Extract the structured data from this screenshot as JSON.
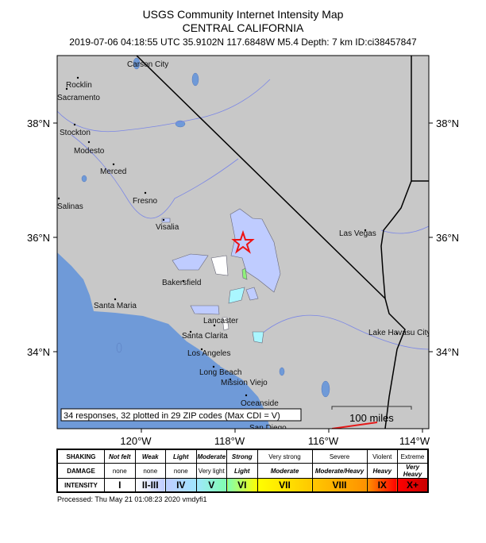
{
  "header": {
    "title": "USGS Community Internet Intensity Map",
    "region": "CENTRAL CALIFORNIA",
    "meta": "2019-07-06 04:18:55 UTC 35.9102N 117.6848W M5.4 Depth: 7 km ID:ci38457847"
  },
  "map": {
    "lat_labels": [
      "38°N",
      "36°N",
      "34°N"
    ],
    "lon_labels": [
      "120°W",
      "118°W",
      "116°W",
      "114°W"
    ],
    "cities": [
      "Carson City",
      "Rocklin",
      "Sacramento",
      "Stockton",
      "Modesto",
      "Merced",
      "Salinas",
      "Fresno",
      "Visalia",
      "Las Vegas",
      "Bakersfield",
      "Santa Maria",
      "Lancaster",
      "Santa Clarita",
      "Los Angeles",
      "Long Beach",
      "Mission Viejo",
      "Oceanside",
      "San Diego",
      "Lake Havasu City"
    ],
    "summary": "34 responses, 32 plotted in 29 ZIP codes (Max CDI = V)",
    "scale_label": "100 miles",
    "epicenter_icon": "star-icon",
    "colors": {
      "ocean": "#6f9ad8",
      "land": "#c8c8c8",
      "epicenter": "#ee1111",
      "cdi_ii_iii": "#bfccff",
      "cdi_iv": "#aaf6ff",
      "cdi_v": "#8ff07a",
      "cdi_i": "#ffffff"
    }
  },
  "legend": {
    "rows": [
      {
        "header": "SHAKING",
        "cells": [
          "Not felt",
          "Weak",
          "Light",
          "Moderate",
          "Strong",
          "Very strong",
          "Severe",
          "Violent",
          "Extreme"
        ]
      },
      {
        "header": "DAMAGE",
        "cells": [
          "none",
          "none",
          "none",
          "Very light",
          "Light",
          "Moderate",
          "Moderate/Heavy",
          "Heavy",
          "Very Heavy"
        ]
      },
      {
        "header": "INTENSITY",
        "cells": [
          "I",
          "II-III",
          "IV",
          "V",
          "VI",
          "VII",
          "VIII",
          "IX",
          "X+"
        ]
      }
    ],
    "intensity_colors": [
      "#ffffff",
      "#bfccff",
      "#a0e6ff",
      "#80ffb0",
      "#ffff00",
      "#ffc800",
      "#ff9100",
      "#ff0000",
      "#c80000"
    ]
  },
  "footer": {
    "processed": "Processed: Thu May 21 01:08:23 2020 vmdyfi1"
  }
}
